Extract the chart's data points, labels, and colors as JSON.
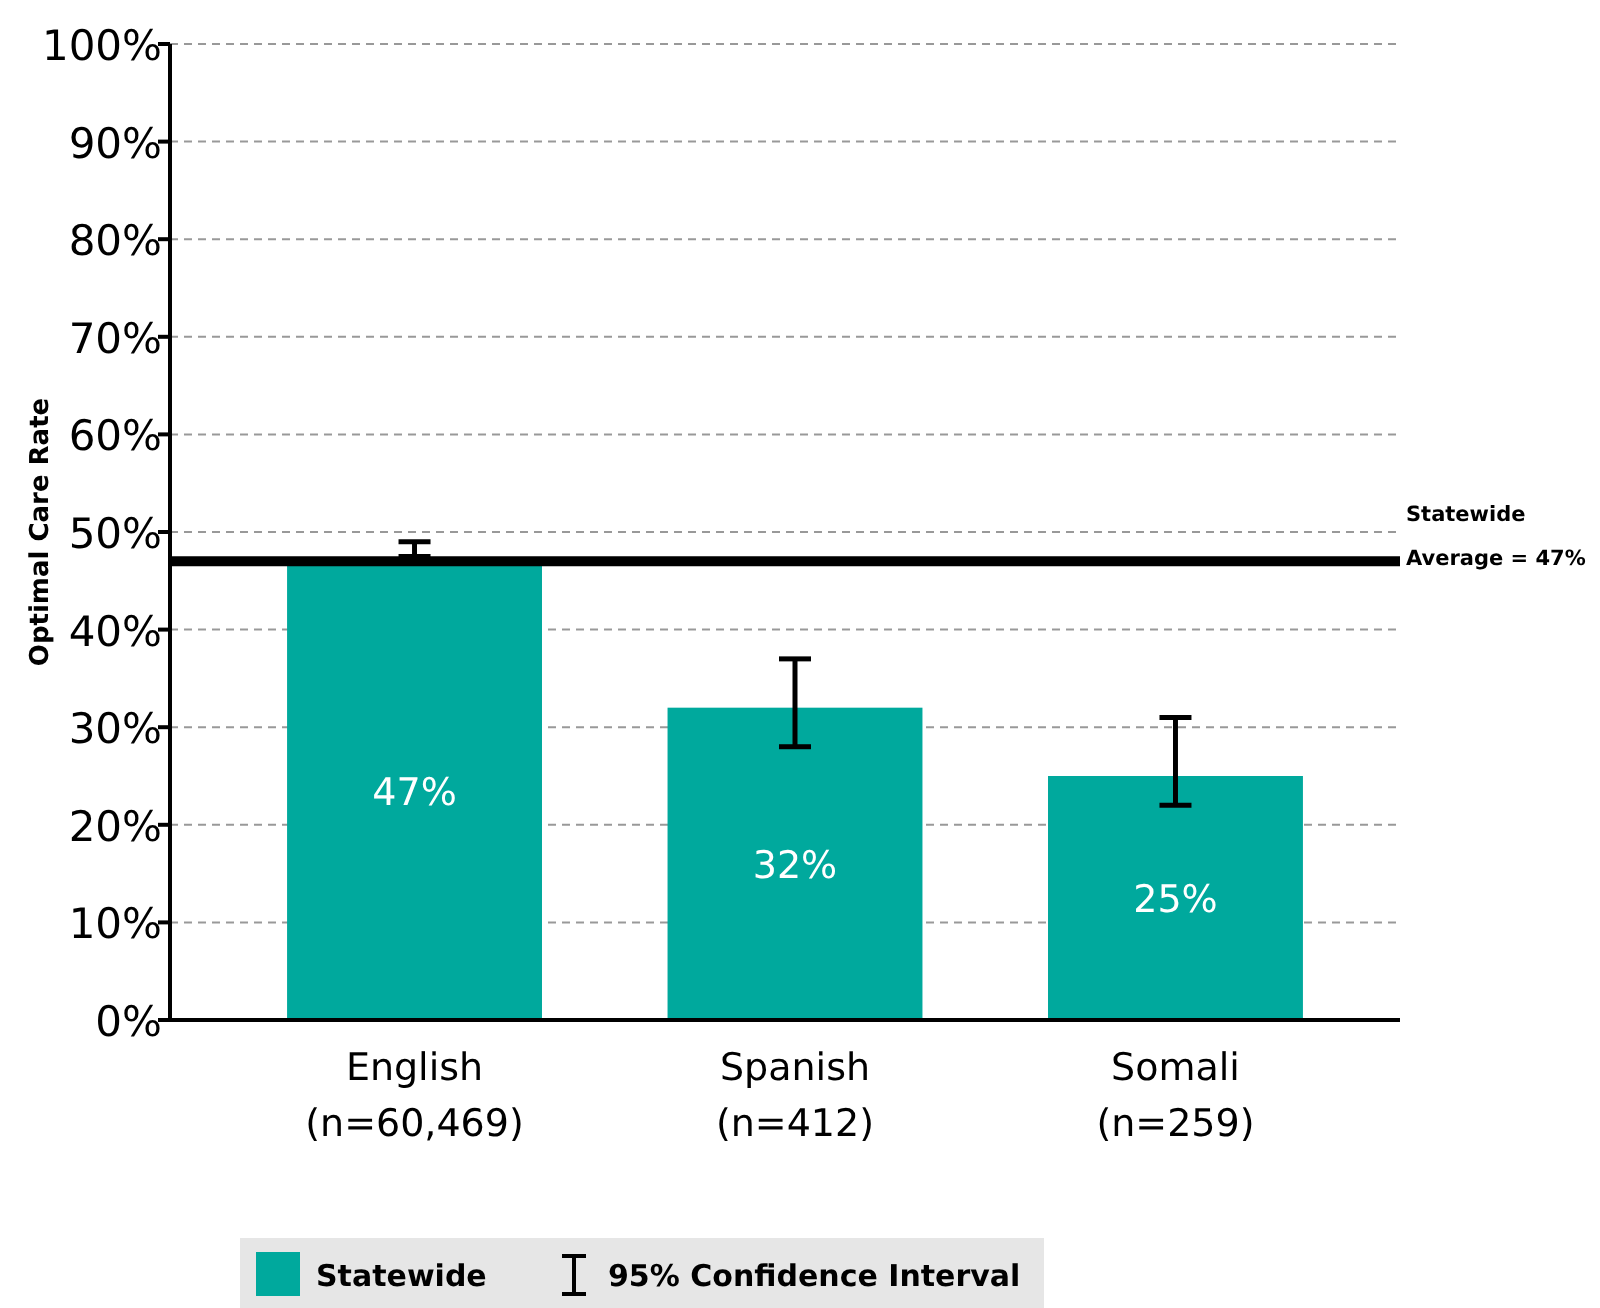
{
  "chart_data": {
    "type": "bar",
    "ylabel": "Optimal Care Rate",
    "categories": [
      "English\n(n=60,469)",
      "Spanish\n(n=412)",
      "Somali\n(n=259)"
    ],
    "series": [
      {
        "name": "Statewide",
        "color": "#00a99d",
        "values": [
          47,
          32,
          25
        ],
        "errors": [
          [
            47.5,
            49
          ],
          [
            28,
            37
          ],
          [
            22,
            31
          ]
        ],
        "value_labels": [
          "47%",
          "32%",
          "25%"
        ]
      }
    ],
    "ylim": [
      0,
      100
    ],
    "yticks": [
      {
        "value": 0,
        "label": "0%"
      },
      {
        "value": 10,
        "label": "10%"
      },
      {
        "value": 20,
        "label": "20%"
      },
      {
        "value": 30,
        "label": "30%"
      },
      {
        "value": 40,
        "label": "40%"
      },
      {
        "value": 50,
        "label": "50%"
      },
      {
        "value": 60,
        "label": "60%"
      },
      {
        "value": 70,
        "label": "70%"
      },
      {
        "value": 80,
        "label": "80%"
      },
      {
        "value": 90,
        "label": "90%"
      },
      {
        "value": 100,
        "label": "100%"
      }
    ],
    "grid": "y",
    "legend": "bottom",
    "annotations": [
      "95% Confidence Interval"
    ],
    "ref_lines": [
      {
        "axis": "y",
        "value": 47,
        "label": "Statewide\nAverage = 47%",
        "color": "#000000"
      }
    ]
  }
}
